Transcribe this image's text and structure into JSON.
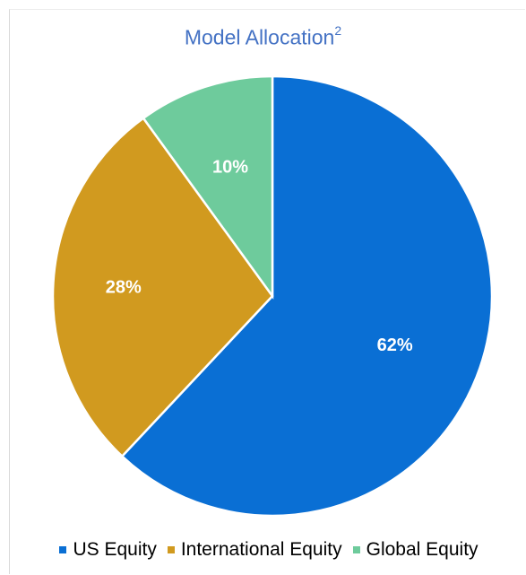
{
  "chart_data": {
    "type": "pie",
    "title": "Model Allocation",
    "title_superscript": "2",
    "slices": [
      {
        "label": "US Equity",
        "value": 62,
        "display": "62%",
        "color": "#0a6fd4"
      },
      {
        "label": "International Equity",
        "value": 28,
        "display": "28%",
        "color": "#d19a1f"
      },
      {
        "label": "Global Equity",
        "value": 10,
        "display": "10%",
        "color": "#6ecb9c"
      }
    ],
    "legend_position": "bottom",
    "label_color": "#ffffff",
    "title_color": "#4472c4"
  }
}
